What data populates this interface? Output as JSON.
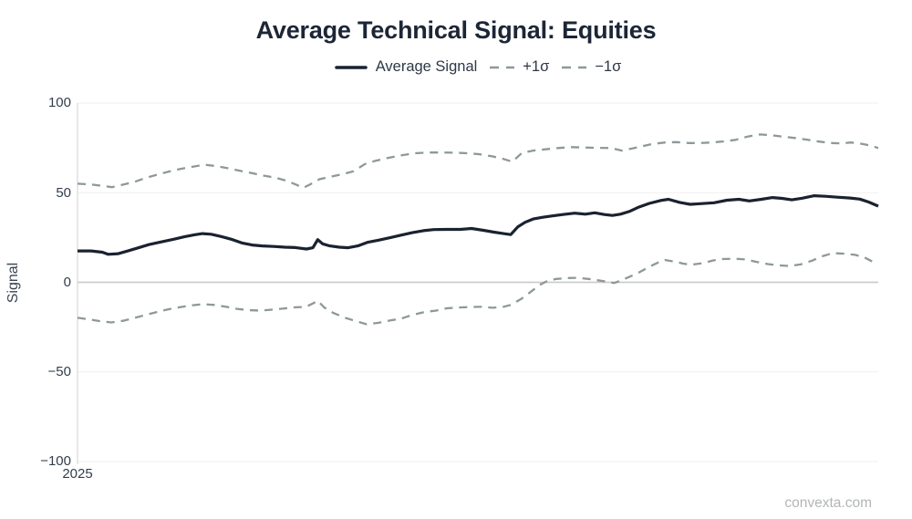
{
  "page": {
    "watermark": "convexta.com"
  },
  "chart_data": {
    "type": "line",
    "title": "Average Technical Signal: Equities",
    "ylabel": "Signal",
    "xlabel": "",
    "ylim": [
      -100,
      100
    ],
    "yticks": [
      100,
      50,
      0,
      -50,
      -100
    ],
    "ytick_labels": [
      "100",
      "50",
      "0",
      "−50",
      "−100"
    ],
    "xtick_labels": [
      "2025"
    ],
    "grid": "horizontal-only",
    "legend_position": "top-center",
    "colors": {
      "average_line": "#1a2230",
      "sigma_line": "#8e989b",
      "grid_minor": "#efefef",
      "zero_line": "#cbcbcb",
      "axis": "#d8d8d8",
      "title_text": "#1d2636",
      "tick_text": "#333d4c",
      "watermark_text": "#b2b5b7"
    },
    "legend": [
      {
        "label": "Average Signal",
        "style": "solid",
        "color": "#1a2230"
      },
      {
        "label": "+1σ",
        "style": "dashed",
        "color": "#8e989b"
      },
      {
        "label": "−1σ",
        "style": "dashed",
        "color": "#8e989b"
      }
    ],
    "series": [
      {
        "name": "Average Signal",
        "style": "solid",
        "color": "#1a2230",
        "width": 3.2,
        "dash": "",
        "points": [
          [
            0,
            17.5
          ],
          [
            1.7,
            17.5
          ],
          [
            3.1,
            16.8
          ],
          [
            3.8,
            15.6
          ],
          [
            5.1,
            16
          ],
          [
            6.3,
            17.5
          ],
          [
            7.4,
            19
          ],
          [
            8.9,
            21
          ],
          [
            10.4,
            22.5
          ],
          [
            12,
            24
          ],
          [
            13.4,
            25.5
          ],
          [
            14.6,
            26.5
          ],
          [
            15.6,
            27.2
          ],
          [
            16.7,
            26.8
          ],
          [
            18,
            25.5
          ],
          [
            19.2,
            24
          ],
          [
            20.5,
            22
          ],
          [
            21.8,
            20.8
          ],
          [
            23.1,
            20.3
          ],
          [
            24.5,
            20
          ],
          [
            25.9,
            19.6
          ],
          [
            27.2,
            19.4
          ],
          [
            28.6,
            18.6
          ],
          [
            29.4,
            19.3
          ],
          [
            30,
            23.8
          ],
          [
            30.6,
            21.5
          ],
          [
            31.5,
            20.3
          ],
          [
            32.7,
            19.6
          ],
          [
            33.8,
            19.3
          ],
          [
            35,
            20.3
          ],
          [
            36.2,
            22.3
          ],
          [
            37.6,
            23.5
          ],
          [
            39.1,
            25
          ],
          [
            40.4,
            26.3
          ],
          [
            41.8,
            27.7
          ],
          [
            43.2,
            28.8
          ],
          [
            44.5,
            29.4
          ],
          [
            46.1,
            29.5
          ],
          [
            47.8,
            29.5
          ],
          [
            49.2,
            30
          ],
          [
            50.7,
            29
          ],
          [
            52,
            28
          ],
          [
            53.2,
            27.2
          ],
          [
            54.1,
            26.6
          ],
          [
            55,
            31
          ],
          [
            55.9,
            33.5
          ],
          [
            56.9,
            35.3
          ],
          [
            58.1,
            36.3
          ],
          [
            59.2,
            37
          ],
          [
            60.6,
            37.8
          ],
          [
            62.1,
            38.6
          ],
          [
            63.4,
            38
          ],
          [
            64.6,
            38.8
          ],
          [
            65.8,
            37.8
          ],
          [
            66.8,
            37.3
          ],
          [
            67.8,
            38
          ],
          [
            68.9,
            39.5
          ],
          [
            70,
            41.8
          ],
          [
            71.4,
            44
          ],
          [
            72.9,
            45.7
          ],
          [
            73.8,
            46.3
          ],
          [
            75.2,
            44.6
          ],
          [
            76.5,
            43.5
          ],
          [
            78,
            43.9
          ],
          [
            79.5,
            44.4
          ],
          [
            81.1,
            45.8
          ],
          [
            82.6,
            46.3
          ],
          [
            83.9,
            45.4
          ],
          [
            85.4,
            46.3
          ],
          [
            86.8,
            47.3
          ],
          [
            88,
            46.8
          ],
          [
            89.2,
            46
          ],
          [
            90.5,
            46.9
          ],
          [
            92,
            48.3
          ],
          [
            93.4,
            48
          ],
          [
            94.9,
            47.5
          ],
          [
            96.5,
            47
          ],
          [
            97.7,
            46.4
          ],
          [
            98.8,
            44.8
          ],
          [
            100,
            42.5
          ]
        ]
      },
      {
        "name": "+1σ",
        "style": "dashed",
        "color": "#8e989b",
        "width": 2.3,
        "dash": "9 7",
        "points": [
          [
            0,
            55
          ],
          [
            1.7,
            54.6
          ],
          [
            3.1,
            53.8
          ],
          [
            4.3,
            53.1
          ],
          [
            5.7,
            54.5
          ],
          [
            7.1,
            56
          ],
          [
            8.5,
            58.2
          ],
          [
            9.9,
            60
          ],
          [
            11.4,
            61.8
          ],
          [
            12.9,
            63.3
          ],
          [
            14.5,
            64.6
          ],
          [
            15.9,
            65.6
          ],
          [
            17.4,
            64.8
          ],
          [
            18.8,
            63.6
          ],
          [
            20.3,
            62.2
          ],
          [
            21.9,
            60.8
          ],
          [
            23.3,
            59.5
          ],
          [
            24.8,
            58.3
          ],
          [
            26.2,
            56.5
          ],
          [
            27.3,
            54.5
          ],
          [
            28.2,
            52.7
          ],
          [
            29,
            54.5
          ],
          [
            30.2,
            57.5
          ],
          [
            31.5,
            58.8
          ],
          [
            33,
            60.2
          ],
          [
            34.5,
            62
          ],
          [
            35.9,
            66
          ],
          [
            37.2,
            67.8
          ],
          [
            38.7,
            69.3
          ],
          [
            40.4,
            70.8
          ],
          [
            42.1,
            72
          ],
          [
            43.8,
            72.4
          ],
          [
            45.6,
            72.4
          ],
          [
            47.3,
            72.3
          ],
          [
            48.6,
            72
          ],
          [
            50.1,
            71.5
          ],
          [
            51.8,
            70.3
          ],
          [
            53.2,
            68.8
          ],
          [
            54.3,
            67.3
          ],
          [
            55.5,
            72.2
          ],
          [
            56.9,
            73.5
          ],
          [
            58.4,
            74.2
          ],
          [
            60,
            74.9
          ],
          [
            61.7,
            75.4
          ],
          [
            63.2,
            75.2
          ],
          [
            64.9,
            75
          ],
          [
            66.6,
            74.9
          ],
          [
            68,
            73.5
          ],
          [
            69.1,
            74.5
          ],
          [
            70.4,
            75.8
          ],
          [
            71.8,
            77.2
          ],
          [
            73.4,
            78
          ],
          [
            74.8,
            78.2
          ],
          [
            76.3,
            77.7
          ],
          [
            77.8,
            77.7
          ],
          [
            79.2,
            78
          ],
          [
            80.6,
            78.6
          ],
          [
            82.2,
            79.5
          ],
          [
            83.7,
            81.3
          ],
          [
            85.2,
            82.5
          ],
          [
            86.6,
            82.1
          ],
          [
            88,
            81.3
          ],
          [
            89.6,
            80.5
          ],
          [
            91.1,
            79.6
          ],
          [
            92.6,
            78.5
          ],
          [
            94,
            77.7
          ],
          [
            95.3,
            77.5
          ],
          [
            96.6,
            78
          ],
          [
            97.9,
            77.3
          ],
          [
            99.1,
            76.2
          ],
          [
            100,
            74.9
          ]
        ]
      },
      {
        "name": "−1σ",
        "style": "dashed",
        "color": "#8e989b",
        "width": 2.3,
        "dash": "9 7",
        "points": [
          [
            0,
            -19.8
          ],
          [
            1.5,
            -20.7
          ],
          [
            2.8,
            -21.7
          ],
          [
            4.2,
            -22.4
          ],
          [
            5.7,
            -21.5
          ],
          [
            7.1,
            -19.9
          ],
          [
            8.5,
            -18.2
          ],
          [
            9.9,
            -16.6
          ],
          [
            11.4,
            -15
          ],
          [
            12.9,
            -13.8
          ],
          [
            14.2,
            -12.9
          ],
          [
            15.6,
            -12.2
          ],
          [
            17.1,
            -12.6
          ],
          [
            18.6,
            -13.7
          ],
          [
            19.9,
            -14.8
          ],
          [
            21.3,
            -15.5
          ],
          [
            22.8,
            -15.8
          ],
          [
            24.1,
            -15.3
          ],
          [
            25.6,
            -14.7
          ],
          [
            27,
            -14
          ],
          [
            28.5,
            -13.7
          ],
          [
            29.4,
            -11.8
          ],
          [
            30,
            -10.3
          ],
          [
            30.8,
            -14
          ],
          [
            31.9,
            -17
          ],
          [
            33.4,
            -19.8
          ],
          [
            34.7,
            -21.6
          ],
          [
            36.1,
            -23.4
          ],
          [
            37.6,
            -22.6
          ],
          [
            39.1,
            -21.2
          ],
          [
            40.4,
            -20.3
          ],
          [
            41.8,
            -18.2
          ],
          [
            43.3,
            -16.6
          ],
          [
            44.8,
            -15.8
          ],
          [
            46.1,
            -14.5
          ],
          [
            47.5,
            -14.1
          ],
          [
            49,
            -13.8
          ],
          [
            50.5,
            -13.7
          ],
          [
            51.8,
            -14.2
          ],
          [
            53,
            -13.9
          ],
          [
            54.1,
            -12.6
          ],
          [
            55.5,
            -9
          ],
          [
            56.7,
            -5
          ],
          [
            57.7,
            -1.5
          ],
          [
            58.7,
            0.8
          ],
          [
            59.8,
            1.9
          ],
          [
            61.2,
            2.4
          ],
          [
            62.5,
            2.5
          ],
          [
            63.8,
            1.9
          ],
          [
            65,
            1.1
          ],
          [
            66.2,
            0.3
          ],
          [
            67,
            -0.4
          ],
          [
            68,
            1.2
          ],
          [
            69.1,
            3.4
          ],
          [
            70.3,
            5.9
          ],
          [
            71.4,
            8.7
          ],
          [
            72.6,
            11.2
          ],
          [
            73.4,
            12.4
          ],
          [
            74.6,
            11.5
          ],
          [
            75.7,
            10.4
          ],
          [
            76.6,
            9.8
          ],
          [
            78,
            10.6
          ],
          [
            79.4,
            12.2
          ],
          [
            80.6,
            13
          ],
          [
            82,
            13.2
          ],
          [
            83.5,
            12.7
          ],
          [
            84.8,
            11.4
          ],
          [
            86.2,
            10.2
          ],
          [
            87.7,
            9.4
          ],
          [
            88.9,
            9.1
          ],
          [
            90.3,
            10
          ],
          [
            91.7,
            12
          ],
          [
            93,
            14.5
          ],
          [
            94.3,
            16.3
          ],
          [
            95.7,
            16
          ],
          [
            97.1,
            15.3
          ],
          [
            98.3,
            13.8
          ],
          [
            99.3,
            11.5
          ],
          [
            100,
            11.2
          ]
        ]
      }
    ]
  }
}
